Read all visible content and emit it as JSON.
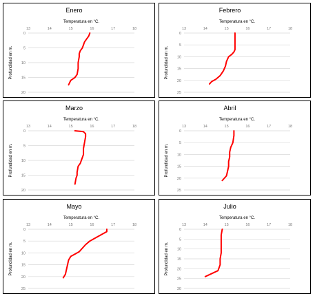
{
  "chart_data": [
    {
      "type": "line",
      "title": "Enero",
      "xlabel": "Temperatura en °C.",
      "ylabel": "Profundidad en m.",
      "xlim": [
        13,
        18
      ],
      "ylim": [
        0,
        20
      ],
      "xticks": [
        "13",
        "14",
        "15",
        "16",
        "17",
        "18"
      ],
      "yticks": [
        "0",
        "5",
        "10",
        "15",
        "20"
      ],
      "series": [
        {
          "x": [
            15.9,
            15.85,
            15.75,
            15.65,
            15.55,
            15.45,
            15.4,
            15.4,
            15.35,
            15.35,
            15.3,
            15.2,
            15.1,
            15.0,
            14.9
          ],
          "y": [
            0,
            1,
            2,
            3,
            5,
            6,
            7,
            8,
            10,
            12,
            14,
            15,
            15.5,
            16,
            17.5
          ]
        }
      ]
    },
    {
      "type": "line",
      "title": "Febrero",
      "xlabel": "Temperatura en °C.",
      "ylabel": "Profundidad en m.",
      "xlim": [
        13,
        18
      ],
      "ylim": [
        0,
        25
      ],
      "xticks": [
        "13",
        "14",
        "15",
        "16",
        "17",
        "18"
      ],
      "yticks": [
        "0",
        "5",
        "10",
        "15",
        "20",
        "25"
      ],
      "series": [
        {
          "x": [
            15.4,
            15.4,
            15.4,
            15.4,
            15.35,
            15.25,
            15.1,
            15.0,
            14.95,
            14.85,
            14.7,
            14.5,
            14.3,
            14.2
          ],
          "y": [
            0,
            2,
            5,
            7,
            8,
            9,
            10,
            12,
            14,
            16,
            18,
            19.5,
            20.5,
            21.5
          ]
        }
      ]
    },
    {
      "type": "line",
      "title": "Marzo",
      "xlabel": "Temperatura en °C.",
      "ylabel": "Profundidad en m.",
      "xlim": [
        13,
        18
      ],
      "ylim": [
        0,
        20
      ],
      "xticks": [
        "13",
        "14",
        "15",
        "16",
        "17",
        "18"
      ],
      "yticks": [
        "0",
        "5",
        "10",
        "15",
        "20"
      ],
      "series": [
        {
          "x": [
            15.2,
            15.6,
            15.7,
            15.7,
            15.65,
            15.6,
            15.6,
            15.5,
            15.45,
            15.35,
            15.3,
            15.3,
            15.25,
            15.2
          ],
          "y": [
            0,
            0.3,
            1,
            2,
            4,
            6,
            8,
            10,
            11,
            12,
            14,
            15,
            16,
            18
          ]
        }
      ]
    },
    {
      "type": "line",
      "title": "Abril",
      "xlabel": "Temperatura en °C.",
      "ylabel": "Profundidad en m.",
      "xlim": [
        13,
        18
      ],
      "ylim": [
        0,
        25
      ],
      "xticks": [
        "13",
        "14",
        "15",
        "16",
        "17",
        "18"
      ],
      "yticks": [
        "0",
        "5",
        "10",
        "15",
        "20",
        "25"
      ],
      "series": [
        {
          "x": [
            15.35,
            15.35,
            15.3,
            15.2,
            15.15,
            15.15,
            15.1,
            15.1,
            15.05,
            15.0,
            14.8
          ],
          "y": [
            0,
            2,
            5,
            7,
            9,
            11,
            13,
            15,
            17,
            19,
            21
          ]
        }
      ]
    },
    {
      "type": "line",
      "title": "Mayo",
      "xlabel": "Temperatura en °C.",
      "ylabel": "Profundidad en m.",
      "xlim": [
        13,
        18
      ],
      "ylim": [
        0,
        25
      ],
      "xticks": [
        "13",
        "14",
        "15",
        "16",
        "17",
        "18"
      ],
      "yticks": [
        "0",
        "5",
        "10",
        "15",
        "20",
        "25"
      ],
      "series": [
        {
          "x": [
            16.7,
            16.7,
            16.5,
            16.2,
            15.9,
            15.7,
            15.55,
            15.4,
            15.2,
            15.0,
            14.9,
            14.85,
            14.8,
            14.75,
            14.65
          ],
          "y": [
            0,
            1,
            2,
            3.5,
            5,
            6.5,
            8,
            9.5,
            10.5,
            11.5,
            13,
            15,
            17,
            19,
            20.5
          ]
        }
      ]
    },
    {
      "type": "line",
      "title": "Julio",
      "xlabel": "Temperatura en °C.",
      "ylabel": "Profundidad en m.",
      "xlim": [
        13,
        18
      ],
      "ylim": [
        0,
        30
      ],
      "xticks": [
        "13",
        "14",
        "15",
        "16",
        "17",
        "18"
      ],
      "yticks": [
        "0",
        "5",
        "10",
        "15",
        "20",
        "25",
        "30"
      ],
      "series": [
        {
          "x": [
            14.8,
            14.75,
            14.75,
            14.75,
            14.75,
            14.7,
            14.7,
            14.6,
            14.2,
            14.0
          ],
          "y": [
            0,
            3,
            5,
            8,
            12,
            15,
            18,
            21,
            23,
            24
          ]
        }
      ]
    }
  ]
}
